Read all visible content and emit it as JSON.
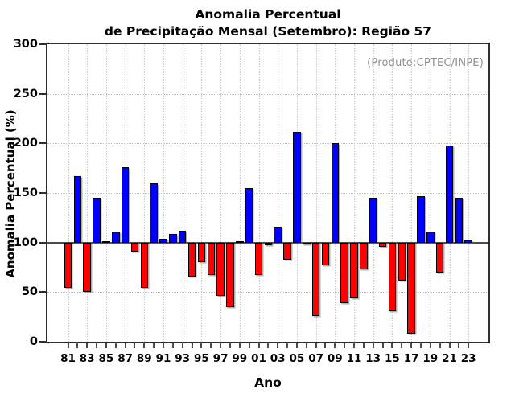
{
  "chart_data": {
    "type": "bar",
    "title_line1": "Anomalia Percentual",
    "title_line2": "de Precipitação Mensal (Setembro): Região 57",
    "xlabel": "Ano",
    "ylabel": "Anomalia Percentual (%)",
    "annotation": "(Produto:CPTEC/INPE)",
    "ylim": [
      0,
      300
    ],
    "yticks": [
      0,
      50,
      100,
      150,
      200,
      250,
      300
    ],
    "baseline": 100,
    "grid_y": [
      50,
      150,
      200,
      250
    ],
    "legend": "none",
    "categories": [
      "81",
      "82",
      "83",
      "84",
      "85",
      "86",
      "87",
      "88",
      "89",
      "90",
      "91",
      "92",
      "93",
      "94",
      "95",
      "96",
      "97",
      "98",
      "99",
      "00",
      "01",
      "02",
      "03",
      "04",
      "05",
      "06",
      "07",
      "08",
      "09",
      "10",
      "11",
      "12",
      "13",
      "14",
      "15",
      "16",
      "17",
      "18",
      "19",
      "20",
      "21",
      "22",
      "23"
    ],
    "xtick_labels": [
      "81",
      "83",
      "85",
      "87",
      "89",
      "91",
      "93",
      "95",
      "97",
      "99",
      "01",
      "03",
      "05",
      "07",
      "09",
      "11",
      "13",
      "15",
      "17",
      "19",
      "21",
      "23"
    ],
    "values": [
      54,
      167,
      50,
      145,
      101,
      111,
      176,
      91,
      54,
      160,
      104,
      109,
      112,
      66,
      80,
      67,
      46,
      35,
      101,
      155,
      67,
      97,
      116,
      83,
      212,
      98,
      26,
      77,
      200,
      39,
      44,
      73,
      145,
      96,
      31,
      62,
      8,
      147,
      111,
      70,
      198,
      145,
      102
    ],
    "colors": {
      "above_baseline": "#0000ff",
      "below_baseline": "#ff0000",
      "bar_outline": "#000000",
      "baseline_line": "#4a4a4a",
      "grid": "#c6c6c6",
      "axis": "#2e2e2e",
      "annotation_text": "#8f8f8f"
    }
  }
}
